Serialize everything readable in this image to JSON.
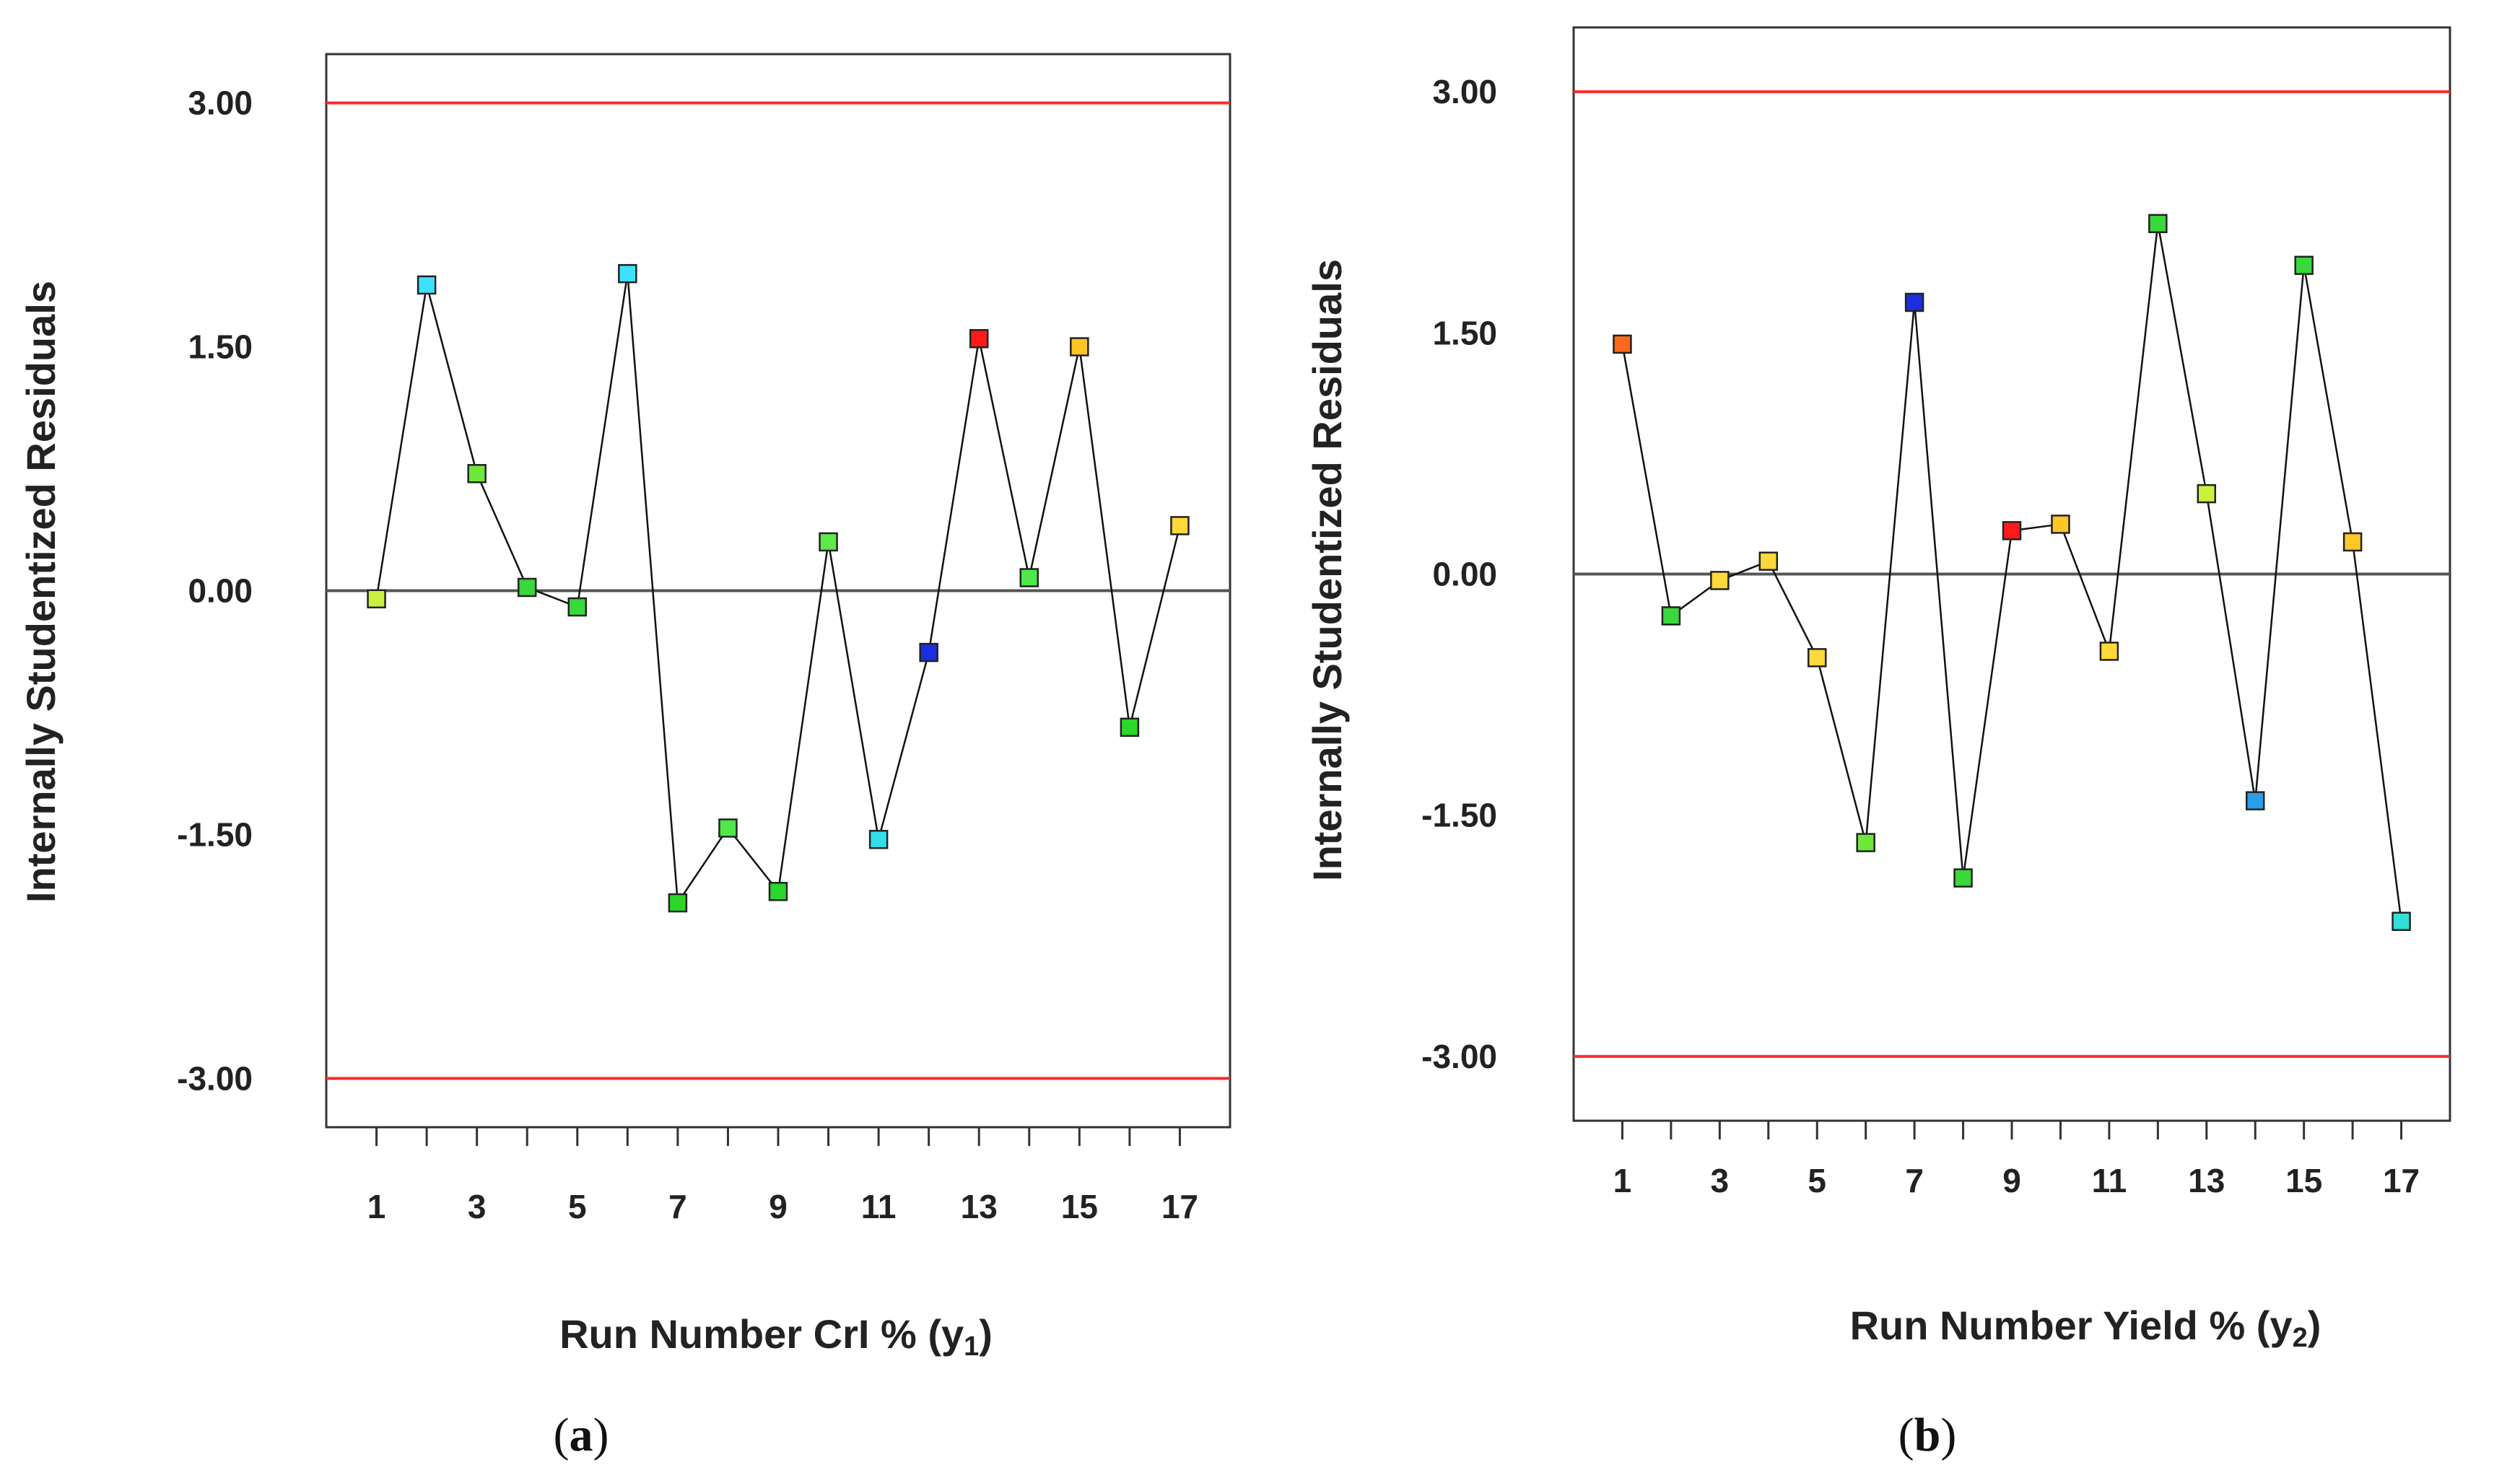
{
  "chart_data": [
    {
      "type": "line",
      "panel_label": "a",
      "ylabel": "Internally Studentized Residuals",
      "xlabel_main": "Run Number CrI % (y",
      "xlabel_sub": "1",
      "xlabel_close": ")",
      "ylim": [
        -3.3,
        3.3
      ],
      "xlim": [
        0,
        18
      ],
      "yticks": [
        {
          "value": 3.0,
          "label": "3.00"
        },
        {
          "value": 1.5,
          "label": "1.50"
        },
        {
          "value": 0.0,
          "label": "0.00"
        },
        {
          "value": -1.5,
          "label": "-1.50"
        },
        {
          "value": -3.0,
          "label": "-3.00"
        }
      ],
      "xticks": [
        1,
        2,
        3,
        4,
        5,
        6,
        7,
        8,
        9,
        10,
        11,
        12,
        13,
        14,
        15,
        16,
        17
      ],
      "xtick_labels": [
        "1",
        "3",
        "5",
        "7",
        "9",
        "11",
        "13",
        "15",
        "17"
      ],
      "limit_lines": [
        3.0,
        -3.0
      ],
      "zero_line": 0.0,
      "limit_color": "#ff2a2a",
      "zero_color": "#555555",
      "x": [
        1,
        2,
        3,
        4,
        5,
        6,
        7,
        8,
        9,
        10,
        11,
        12,
        13,
        14,
        15,
        16,
        17
      ],
      "y": [
        -0.05,
        1.88,
        0.72,
        0.02,
        -0.1,
        1.95,
        -1.92,
        -1.46,
        -1.85,
        0.3,
        -1.53,
        -0.38,
        1.55,
        0.08,
        1.5,
        -0.84,
        0.4
      ],
      "point_colors": [
        "#c8f03c",
        "#3ee0ff",
        "#6ee83a",
        "#3ad83a",
        "#3ad83a",
        "#3ee0ff",
        "#2ad82a",
        "#4ee84a",
        "#2ad82a",
        "#5ee84a",
        "#30e0e8",
        "#1b2fe0",
        "#ff1a1a",
        "#4ee84a",
        "#ffc626",
        "#2ad82a",
        "#ffd83a"
      ]
    },
    {
      "type": "line",
      "panel_label": "b",
      "ylabel": "Internally Studentized Residuals",
      "xlabel_main": "Run Number Yield % (y",
      "xlabel_sub": "2",
      "xlabel_close": ")",
      "ylim": [
        -3.4,
        3.4
      ],
      "xlim": [
        0,
        18
      ],
      "yticks": [
        {
          "value": 3.0,
          "label": "3.00"
        },
        {
          "value": 1.5,
          "label": "1.50"
        },
        {
          "value": 0.0,
          "label": "0.00"
        },
        {
          "value": -1.5,
          "label": "-1.50"
        },
        {
          "value": -3.0,
          "label": "-3.00"
        }
      ],
      "xticks": [
        1,
        2,
        3,
        4,
        5,
        6,
        7,
        8,
        9,
        10,
        11,
        12,
        13,
        14,
        15,
        16,
        17
      ],
      "xtick_labels": [
        "1",
        "3",
        "5",
        "7",
        "9",
        "11",
        "13",
        "15",
        "17"
      ],
      "limit_lines": [
        3.0,
        -3.0
      ],
      "zero_line": 0.0,
      "limit_color": "#ff2a2a",
      "zero_color": "#555555",
      "x": [
        1,
        2,
        3,
        4,
        5,
        6,
        7,
        8,
        9,
        10,
        11,
        12,
        13,
        14,
        15,
        16,
        17
      ],
      "y": [
        1.43,
        -0.26,
        -0.04,
        0.08,
        -0.52,
        -1.67,
        1.69,
        -1.89,
        0.27,
        0.31,
        -0.48,
        2.18,
        0.5,
        -1.41,
        1.92,
        0.2,
        -2.16
      ],
      "point_colors": [
        "#ff6a1a",
        "#3ad83a",
        "#ffd83a",
        "#ffd83a",
        "#ffd83a",
        "#6ee83a",
        "#1b2fe0",
        "#3ad83a",
        "#ff1a1a",
        "#ffc626",
        "#ffd83a",
        "#3ad83a",
        "#c8f03c",
        "#2a9ee8",
        "#3ad83a",
        "#ffc626",
        "#30e0d8"
      ]
    }
  ]
}
